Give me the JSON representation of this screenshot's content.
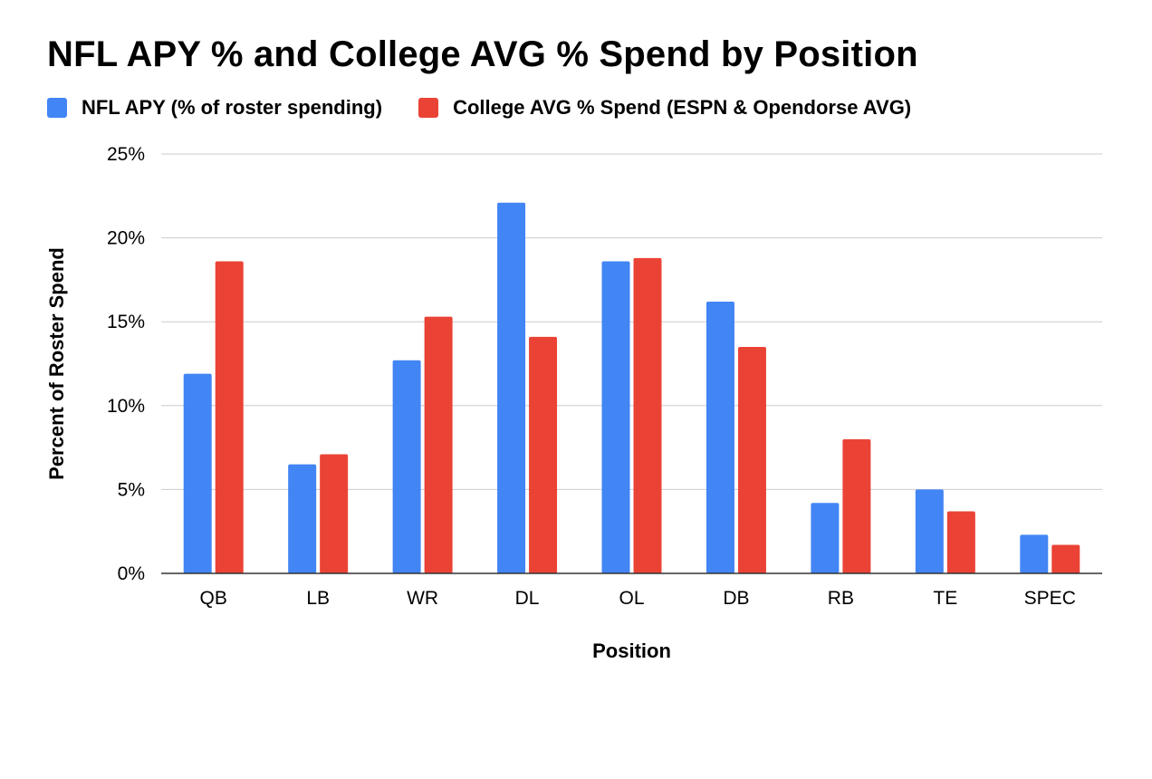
{
  "chart_data": {
    "type": "bar",
    "title": "NFL APY % and College AVG % Spend by Position",
    "xlabel": "Position",
    "ylabel": "Percent of Roster Spend",
    "ylim": [
      0,
      25
    ],
    "yticks": [
      0,
      5,
      10,
      15,
      20,
      25
    ],
    "ytick_labels": [
      "0%",
      "5%",
      "10%",
      "15%",
      "20%",
      "25%"
    ],
    "categories": [
      "QB",
      "LB",
      "WR",
      "DL",
      "OL",
      "DB",
      "RB",
      "TE",
      "SPEC"
    ],
    "series": [
      {
        "name": "NFL APY (% of roster spending)",
        "color": "#4285f4",
        "values": [
          11.9,
          6.5,
          12.7,
          22.1,
          18.6,
          16.2,
          4.2,
          5.0,
          2.3
        ]
      },
      {
        "name": "College AVG % Spend (ESPN & Opendorse AVG)",
        "color": "#ea4335",
        "values": [
          18.6,
          7.1,
          15.3,
          14.1,
          18.8,
          13.5,
          8.0,
          3.7,
          1.7
        ]
      }
    ],
    "grid": true,
    "legend_position": "top-left"
  }
}
